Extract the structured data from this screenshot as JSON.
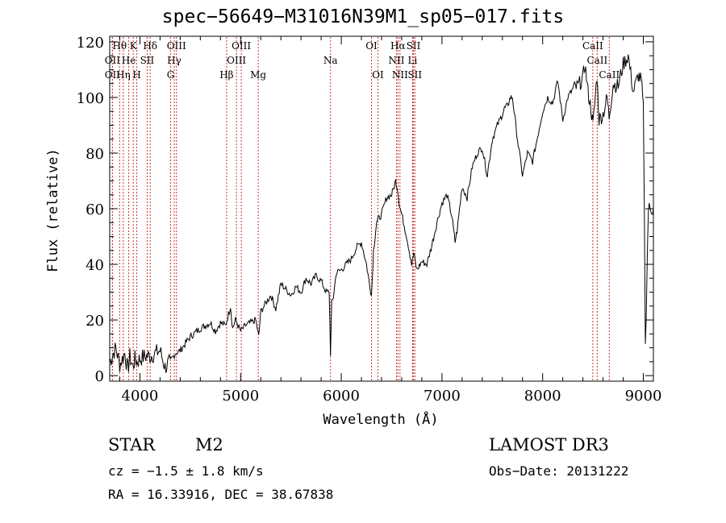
{
  "chart_data": {
    "type": "line",
    "title": "spec−56649−M31016N39M1_sp05−017.fits",
    "xlabel": "Wavelength (Å)",
    "ylabel": "Flux (relative)",
    "xlim": [
      3700,
      9100
    ],
    "ylim": [
      -2,
      122
    ],
    "xticks": [
      4000,
      5000,
      6000,
      7000,
      8000,
      9000
    ],
    "xtick_labels": [
      "4000",
      "5000",
      "6000",
      "7000",
      "8000",
      "9000"
    ],
    "yticks": [
      0,
      20,
      40,
      60,
      80,
      100,
      120
    ],
    "ytick_labels": [
      "0",
      "20",
      "40",
      "60",
      "80",
      "100",
      "120"
    ],
    "spectrum": {
      "x": [
        3700,
        3760,
        3800,
        3850,
        3880,
        3900,
        3930,
        3950,
        3970,
        4000,
        4050,
        4100,
        4150,
        4200,
        4250,
        4300,
        4350,
        4400,
        4500,
        4600,
        4700,
        4750,
        4800,
        4850,
        4880,
        4900,
        4920,
        4950,
        5000,
        5050,
        5100,
        5150,
        5180,
        5200,
        5250,
        5300,
        5350,
        5400,
        5450,
        5500,
        5550,
        5600,
        5650,
        5700,
        5750,
        5800,
        5850,
        5880,
        5893,
        5905,
        5920,
        5950,
        6000,
        6050,
        6100,
        6150,
        6200,
        6250,
        6280,
        6300,
        6320,
        6350,
        6400,
        6450,
        6500,
        6540,
        6560,
        6580,
        6600,
        6650,
        6700,
        6720,
        6750,
        6800,
        6850,
        6900,
        6950,
        7000,
        7050,
        7100,
        7130,
        7150,
        7200,
        7250,
        7300,
        7350,
        7400,
        7450,
        7500,
        7550,
        7600,
        7620,
        7650,
        7680,
        7700,
        7750,
        7800,
        7850,
        7900,
        7950,
        8000,
        8050,
        8100,
        8150,
        8200,
        8250,
        8300,
        8350,
        8400,
        8420,
        8450,
        8480,
        8500,
        8540,
        8560,
        8600,
        8640,
        8660,
        8700,
        8750,
        8800,
        8850,
        8900,
        8950,
        8980,
        9000,
        9010,
        9020,
        9050,
        9100
      ],
      "y": [
        5,
        10,
        4,
        8,
        2,
        7,
        3,
        6,
        5,
        6,
        7,
        7,
        8,
        9,
        3,
        5,
        8,
        9,
        14,
        17,
        19,
        16,
        19,
        18,
        22,
        25,
        17,
        20,
        16,
        18,
        19,
        20,
        14,
        23,
        26,
        29,
        24,
        33,
        31,
        29,
        32,
        30,
        35,
        33,
        36,
        34,
        30,
        30,
        8,
        26,
        28,
        37,
        38,
        40,
        42,
        46,
        48,
        40,
        33,
        29,
        45,
        55,
        58,
        64,
        65,
        70,
        67,
        61,
        58,
        50,
        40,
        44,
        38,
        41,
        40,
        47,
        55,
        62,
        65,
        57,
        48,
        52,
        68,
        64,
        75,
        80,
        82,
        72,
        85,
        90,
        94,
        96,
        97,
        100,
        100,
        85,
        72,
        80,
        77,
        86,
        95,
        100,
        98,
        106,
        92,
        100,
        103,
        104,
        107,
        112,
        102,
        96,
        90,
        108,
        92,
        94,
        100,
        93,
        105,
        104,
        112,
        115,
        102,
        108,
        106,
        96,
        60,
        10,
        60,
        60
      ]
    },
    "lines": [
      {
        "label": "Hθ",
        "wave": 3798,
        "row": 1
      },
      {
        "label": "OII",
        "wave": 3727,
        "row": 2
      },
      {
        "label": "OII",
        "wave": 3727,
        "row": 3
      },
      {
        "label": "K",
        "wave": 3934,
        "row": 1
      },
      {
        "label": "He",
        "wave": 3889,
        "row": 2
      },
      {
        "label": "Hη",
        "wave": 3835,
        "row": 3
      },
      {
        "label": "Hδ",
        "wave": 4102,
        "row": 1
      },
      {
        "label": "SII",
        "wave": 4072,
        "row": 2
      },
      {
        "label": "H",
        "wave": 3969,
        "row": 3
      },
      {
        "label": "OIII",
        "wave": 4363,
        "row": 1
      },
      {
        "label": "Hγ",
        "wave": 4341,
        "row": 2
      },
      {
        "label": "G",
        "wave": 4305,
        "row": 3
      },
      {
        "label": "Hβ",
        "wave": 4861,
        "row": 3
      },
      {
        "label": "OIII",
        "wave": 5007,
        "row": 1
      },
      {
        "label": "OIII",
        "wave": 4959,
        "row": 2
      },
      {
        "label": "Mg",
        "wave": 5175,
        "row": 3
      },
      {
        "label": "Na",
        "wave": 5893,
        "row": 2
      },
      {
        "label": "OI",
        "wave": 6300,
        "row": 1
      },
      {
        "label": "OI",
        "wave": 6364,
        "row": 3
      },
      {
        "label": "Hα",
        "wave": 6563,
        "row": 1
      },
      {
        "label": "NII",
        "wave": 6548,
        "row": 2
      },
      {
        "label": "NII",
        "wave": 6583,
        "row": 3
      },
      {
        "label": "SII",
        "wave": 6717,
        "row": 1
      },
      {
        "label": "Li",
        "wave": 6708,
        "row": 2
      },
      {
        "label": "SII",
        "wave": 6731,
        "row": 3
      },
      {
        "label": "CaII",
        "wave": 8498,
        "row": 1
      },
      {
        "label": "CaII",
        "wave": 8542,
        "row": 2
      },
      {
        "label": "CaII",
        "wave": 8662,
        "row": 3
      }
    ]
  },
  "info": {
    "class": "STAR",
    "subclass": "M2",
    "cz": "cz = −1.5 ± 1.8 km/s",
    "radec": "RA =  16.33916, DEC =  38.67838",
    "survey": "LAMOST DR3",
    "obsdate": "Obs−Date: 20131222"
  }
}
